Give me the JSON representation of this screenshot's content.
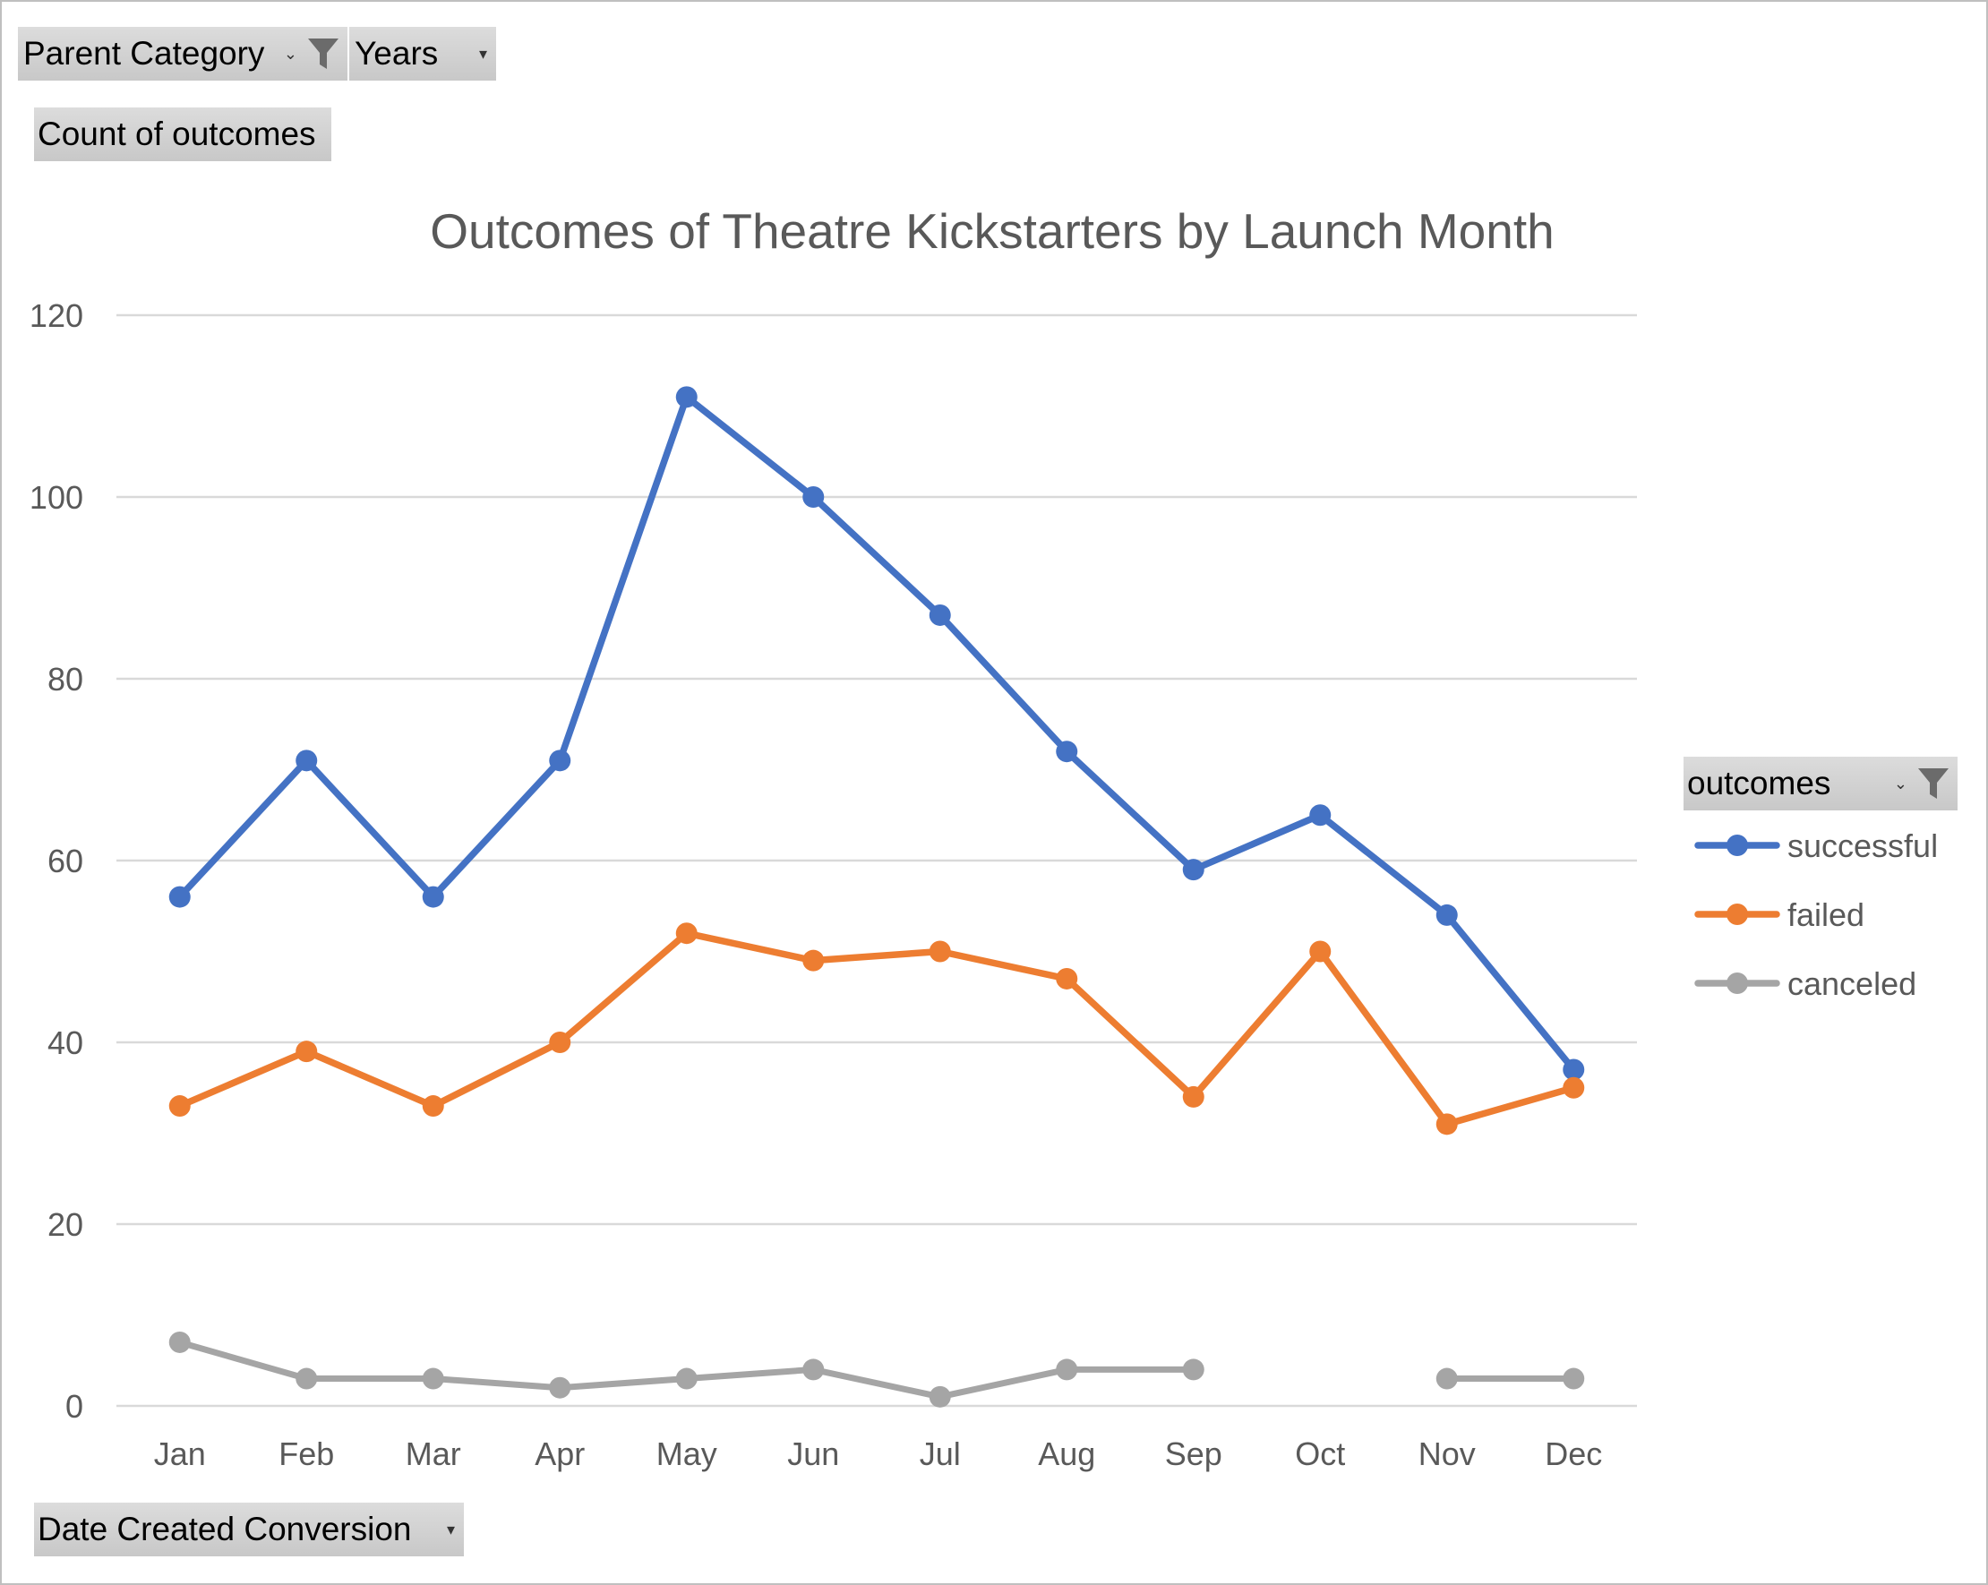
{
  "pivot_fields": {
    "parent_category": "Parent Category",
    "years": "Years",
    "value_field": "Count of outcomes",
    "axis_field": "Date Created Conversion",
    "legend_field": "outcomes"
  },
  "icons": {
    "filter": "filter-funnel-icon",
    "dropdown": "chevron-down-icon"
  },
  "chart_data": {
    "type": "line",
    "title": "Outcomes of Theatre Kickstarters by Launch Month",
    "xlabel": "",
    "ylabel": "",
    "categories": [
      "Jan",
      "Feb",
      "Mar",
      "Apr",
      "May",
      "Jun",
      "Jul",
      "Aug",
      "Sep",
      "Oct",
      "Nov",
      "Dec"
    ],
    "ylim": [
      0,
      120
    ],
    "yticks": [
      "0",
      "20",
      "40",
      "60",
      "80",
      "100",
      "120"
    ],
    "grid": true,
    "legend_position": "right",
    "series": [
      {
        "name": "successful",
        "color": "#4472C4",
        "values": [
          56,
          71,
          56,
          71,
          111,
          100,
          87,
          72,
          59,
          65,
          54,
          37
        ]
      },
      {
        "name": "failed",
        "color": "#ED7D31",
        "values": [
          33,
          39,
          33,
          40,
          52,
          49,
          50,
          47,
          34,
          50,
          31,
          35
        ]
      },
      {
        "name": "canceled",
        "color": "#A5A5A5",
        "values": [
          7,
          3,
          3,
          2,
          3,
          4,
          1,
          4,
          4,
          null,
          3,
          3
        ]
      }
    ]
  }
}
